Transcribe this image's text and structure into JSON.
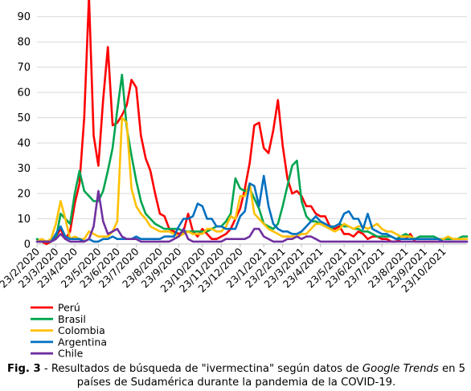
{
  "caption": {
    "label": "Fig. 3",
    "text_before": " - Resultados de búsqueda de \"ivermectina\" según datos de ",
    "text_italic": "Google Trends",
    "text_after": " en 5 países de Sudamérica durante la pandemia de la COVID-19."
  },
  "chart_data": {
    "type": "line",
    "title": "",
    "xlabel": "",
    "ylabel": "",
    "ylim": [
      0,
      95
    ],
    "yticks": [
      0,
      10,
      20,
      30,
      40,
      50,
      60,
      70,
      80,
      90
    ],
    "grid": "horizontal",
    "legend_position": "bottom-left",
    "x_tick_labels": [
      "23/2/2020",
      "23/3/2020",
      "23/4/2020",
      "23/5/2020",
      "23/6/2020",
      "23/7/2020",
      "23/8/2020",
      "23/9/2020",
      "23/10/2020",
      "23/11/2020",
      "23/12/2020",
      "23/1/2021",
      "23/2/2021",
      "23/3/2021",
      "23/4/2021",
      "23/5/2021",
      "23/6/2021",
      "23/7/2021",
      "23/8/2021",
      "23/9/2021",
      "23/10/2021"
    ],
    "x_tick_weeks": [
      0,
      4,
      8,
      13,
      17,
      21,
      26,
      30,
      35,
      39,
      43,
      48,
      52,
      56,
      60,
      65,
      69,
      73,
      78,
      82,
      86
    ],
    "n_weeks": 92,
    "series": [
      {
        "name": "Perú",
        "color": "#ff0000",
        "values": [
          1,
          1,
          0,
          1,
          3,
          6,
          2,
          5,
          16,
          24,
          50,
          98,
          43,
          31,
          57,
          78,
          47,
          48,
          51,
          55,
          65,
          62,
          43,
          34,
          29,
          20,
          12,
          11,
          6,
          5,
          4,
          5,
          12,
          5,
          3,
          6,
          4,
          2,
          2,
          3,
          4,
          6,
          10,
          14,
          22,
          32,
          47,
          48,
          38,
          36,
          45,
          57,
          39,
          26,
          20,
          21,
          19,
          15,
          15,
          12,
          11,
          11,
          7,
          6,
          7,
          4,
          4,
          3,
          5,
          4,
          2,
          3,
          3,
          2,
          2,
          1,
          1,
          2,
          2,
          4,
          1,
          1,
          1,
          1,
          1,
          1,
          1,
          1,
          1,
          1,
          1,
          1
        ]
      },
      {
        "name": "Brasil",
        "color": "#00a550",
        "values": [
          2,
          1,
          1,
          1,
          2,
          12,
          10,
          8,
          20,
          29,
          21,
          19,
          17,
          17,
          21,
          29,
          38,
          53,
          67,
          46,
          35,
          25,
          17,
          12,
          10,
          8,
          7,
          6,
          6,
          6,
          6,
          5,
          5,
          5,
          5,
          5,
          5,
          6,
          7,
          7,
          9,
          12,
          26,
          22,
          21,
          22,
          18,
          14,
          8,
          7,
          6,
          8,
          15,
          23,
          31,
          33,
          17,
          11,
          9,
          9,
          8,
          7,
          6,
          7,
          8,
          7,
          7,
          6,
          6,
          5,
          5,
          4,
          3,
          3,
          3,
          3,
          2,
          3,
          4,
          3,
          2,
          3,
          3,
          3,
          3,
          2,
          2,
          2,
          2,
          2,
          3,
          3
        ]
      },
      {
        "name": "Colombia",
        "color": "#ffc000",
        "values": [
          1,
          2,
          1,
          2,
          8,
          17,
          10,
          2,
          3,
          2,
          2,
          5,
          4,
          3,
          3,
          3,
          5,
          9,
          50,
          48,
          22,
          15,
          12,
          10,
          7,
          6,
          5,
          5,
          5,
          4,
          3,
          4,
          5,
          4,
          4,
          4,
          6,
          6,
          5,
          5,
          7,
          11,
          10,
          19,
          19,
          24,
          12,
          10,
          8,
          6,
          5,
          4,
          3,
          3,
          3,
          3,
          4,
          4,
          6,
          8,
          8,
          7,
          6,
          5,
          6,
          8,
          7,
          6,
          7,
          7,
          6,
          7,
          8,
          6,
          5,
          5,
          4,
          3,
          3,
          3,
          2,
          2,
          2,
          2,
          2,
          2,
          2,
          3,
          2,
          2,
          2,
          2
        ]
      },
      {
        "name": "Argentina",
        "color": "#0070c0",
        "values": [
          1,
          1,
          1,
          1,
          4,
          7,
          3,
          2,
          2,
          2,
          1,
          2,
          1,
          1,
          2,
          2,
          3,
          2,
          2,
          2,
          2,
          3,
          2,
          2,
          2,
          2,
          2,
          3,
          3,
          3,
          7,
          10,
          10,
          11,
          16,
          15,
          10,
          10,
          7,
          7,
          6,
          6,
          6,
          11,
          13,
          24,
          23,
          15,
          27,
          15,
          8,
          6,
          5,
          5,
          4,
          4,
          5,
          7,
          9,
          11,
          9,
          8,
          7,
          7,
          8,
          12,
          13,
          10,
          10,
          6,
          12,
          6,
          5,
          4,
          4,
          3,
          2,
          2,
          2,
          2,
          2,
          2,
          2,
          2,
          2,
          2,
          1,
          1,
          1,
          1,
          1,
          1
        ]
      },
      {
        "name": "Chile",
        "color": "#7030a0",
        "values": [
          1,
          1,
          1,
          1,
          2,
          4,
          2,
          1,
          1,
          1,
          1,
          2,
          7,
          21,
          9,
          4,
          5,
          6,
          3,
          2,
          2,
          2,
          1,
          1,
          1,
          1,
          1,
          1,
          1,
          2,
          3,
          6,
          2,
          1,
          1,
          1,
          1,
          1,
          1,
          1,
          2,
          2,
          2,
          2,
          2,
          3,
          6,
          6,
          3,
          2,
          1,
          1,
          1,
          2,
          2,
          3,
          2,
          3,
          3,
          2,
          1,
          1,
          1,
          1,
          1,
          1,
          1,
          1,
          1,
          1,
          1,
          1,
          1,
          1,
          1,
          1,
          1,
          1,
          1,
          1,
          1,
          1,
          1,
          1,
          1,
          1,
          1,
          1,
          1,
          1,
          1,
          1
        ]
      }
    ]
  }
}
